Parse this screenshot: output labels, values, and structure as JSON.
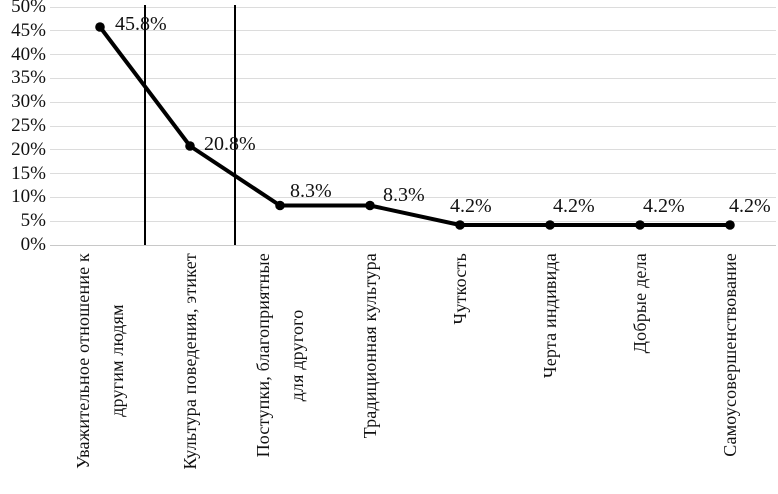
{
  "chart_data": {
    "type": "line",
    "categories": [
      "Уважительное отношение к\nдругим людям",
      "Культура поведения, этикет",
      "Поступки, благоприятные\nдля другого",
      "Традиционная культура",
      "Чуткость",
      "Черта индивида",
      "Добрые дела",
      "Самоусовершенствование"
    ],
    "values": [
      45.8,
      20.8,
      8.3,
      8.3,
      4.2,
      4.2,
      4.2,
      4.2
    ],
    "point_labels": [
      "45.8%",
      "20.8%",
      "8.3%",
      "8.3%",
      "4.2%",
      "4.2%",
      "4.2%",
      "4.2%"
    ],
    "ylim": [
      0,
      50
    ],
    "y_axis": {
      "ticks": [
        {
          "value": 0,
          "label": "0%"
        },
        {
          "value": 5,
          "label": "5%"
        },
        {
          "value": 10,
          "label": "10%"
        },
        {
          "value": 15,
          "label": "15%"
        },
        {
          "value": 20,
          "label": "20%"
        },
        {
          "value": 25,
          "label": "25%"
        },
        {
          "value": 30,
          "label": "30%"
        },
        {
          "value": 35,
          "label": "35%"
        },
        {
          "value": 40,
          "label": "40%"
        },
        {
          "value": 45,
          "label": "45%"
        },
        {
          "value": 50,
          "label": "50%"
        }
      ]
    },
    "grid": "horizontal",
    "legend": "none",
    "separator_lines_after_category": [
      0,
      1
    ],
    "colors": {
      "line": "#000000",
      "marker": "#000000",
      "gridline": "#dcdcdc",
      "axis_line": "#c8c8c8",
      "separator": "#000000",
      "text": "#111111"
    }
  }
}
